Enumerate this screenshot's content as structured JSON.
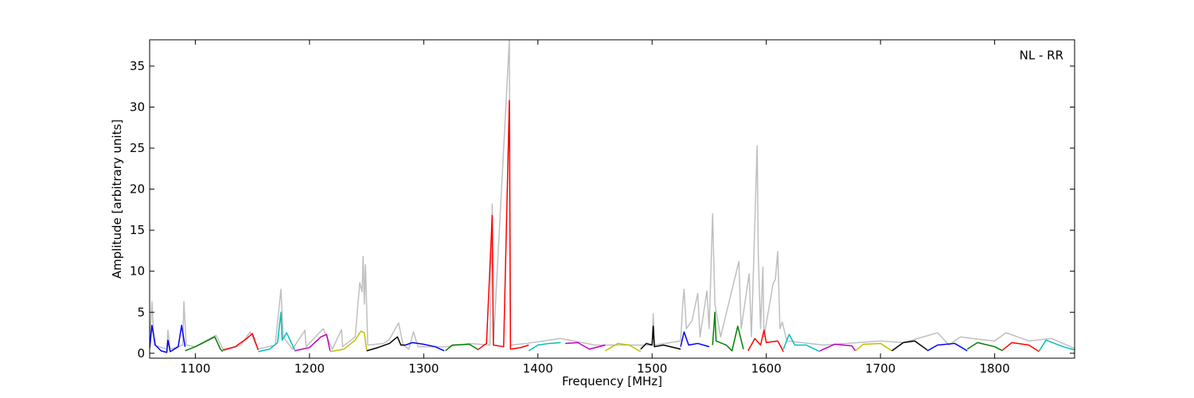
{
  "chart_data": {
    "type": "line",
    "annotation": "NL - RR",
    "xlabel": "Frequency [MHz]",
    "ylabel": "Amplitude [arbitrary units]",
    "xlim": [
      1060,
      1870
    ],
    "xticks": [
      1100,
      1200,
      1300,
      1400,
      1500,
      1600,
      1700,
      1800
    ],
    "ylim": [
      -0.6,
      38.2
    ],
    "yticks": [
      0,
      5,
      10,
      15,
      20,
      25,
      30,
      35
    ],
    "series": [
      {
        "color": "#bfbfbf",
        "x": [
          1060,
          1062,
          1064,
          1075,
          1076,
          1078,
          1089,
          1090,
          1092,
          1100,
          1118,
          1125,
          1140,
          1148,
          1155,
          1170,
          1175,
          1177,
          1185,
          1196,
          1197,
          1212,
          1220,
          1228,
          1229,
          1240,
          1244,
          1246,
          1247,
          1248,
          1249,
          1251,
          1265,
          1270,
          1278,
          1282,
          1287,
          1291,
          1295,
          1320,
          1340,
          1358,
          1360,
          1361,
          1375,
          1376,
          1390,
          1420,
          1450,
          1500,
          1501,
          1502,
          1525,
          1527,
          1528,
          1530,
          1535,
          1540,
          1542,
          1548,
          1550,
          1553,
          1555,
          1560,
          1576,
          1578,
          1585,
          1587,
          1592,
          1593,
          1595,
          1597,
          1598,
          1606,
          1608,
          1610,
          1612,
          1614,
          1618,
          1650,
          1700,
          1720,
          1750,
          1760,
          1770,
          1780,
          1800,
          1810,
          1830,
          1850,
          1870
        ],
        "values": [
          1,
          6.3,
          1,
          0.5,
          2.8,
          0.5,
          1,
          6.3,
          1,
          0.8,
          2.2,
          0.3,
          1,
          2.6,
          0.5,
          1,
          7.8,
          2,
          0.5,
          2.8,
          0.8,
          3,
          0.5,
          2.9,
          0.8,
          2,
          8.6,
          7.5,
          11.8,
          6,
          10.8,
          1,
          1.2,
          1.7,
          3.7,
          1,
          0.5,
          2.6,
          0.8,
          0.8,
          1.2,
          1,
          18.2,
          1,
          38.2,
          1,
          1.2,
          1.8,
          1,
          1,
          4.8,
          1,
          1.5,
          6.3,
          7.8,
          3,
          4,
          7.3,
          2,
          7.6,
          3,
          17,
          6,
          2,
          11.2,
          3,
          9.7,
          2,
          25.3,
          12,
          3,
          10.5,
          2,
          8.5,
          9,
          12.4,
          3,
          3.8,
          1.5,
          1,
          1.5,
          1.3,
          2.5,
          1,
          2,
          1.8,
          1.5,
          2.5,
          1.5,
          1.8,
          0.6
        ]
      },
      {
        "color": "#0000ff",
        "x": [
          1060,
          1062,
          1065,
          1070,
          1075,
          1076,
          1078,
          1085,
          1088,
          1091
        ],
        "values": [
          0.6,
          3.4,
          1,
          0.3,
          0.1,
          1.6,
          0.2,
          0.8,
          3.4,
          0.8
        ]
      },
      {
        "color": "#008000",
        "x": [
          1091,
          1100,
          1110,
          1117,
          1122,
          1124
        ],
        "values": [
          0.3,
          0.8,
          1.5,
          2,
          0.5,
          0.2
        ]
      },
      {
        "color": "#ff0000",
        "x": [
          1124,
          1135,
          1145,
          1150,
          1155
        ],
        "values": [
          0.4,
          0.8,
          1.8,
          2.4,
          0.4
        ]
      },
      {
        "color": "#00bfbf",
        "x": [
          1155,
          1165,
          1172,
          1175,
          1176,
          1180,
          1187
        ],
        "values": [
          0.2,
          0.5,
          1.3,
          5,
          1.6,
          2.5,
          0.4
        ]
      },
      {
        "color": "#bf00bf",
        "x": [
          1187,
          1200,
          1210,
          1215,
          1218
        ],
        "values": [
          0.3,
          0.7,
          2,
          2.3,
          0.3
        ]
      },
      {
        "color": "#bfbf00",
        "x": [
          1218,
          1230,
          1240,
          1245,
          1248,
          1250
        ],
        "values": [
          0.2,
          0.5,
          1.6,
          2.7,
          2.5,
          0.4
        ]
      },
      {
        "color": "#000000",
        "x": [
          1250,
          1260,
          1270,
          1277,
          1280,
          1284
        ],
        "values": [
          0.3,
          0.7,
          1.2,
          2,
          1,
          1
        ]
      },
      {
        "color": "#0000ff",
        "x": [
          1284,
          1290,
          1300,
          1310,
          1318
        ],
        "values": [
          1,
          1.3,
          1.1,
          0.8,
          0.3
        ]
      },
      {
        "color": "#008000",
        "x": [
          1319,
          1325,
          1340,
          1347
        ],
        "values": [
          0.3,
          1,
          1.1,
          0.5
        ]
      },
      {
        "color": "#ff0000",
        "x": [
          1347,
          1355,
          1360,
          1361,
          1370,
          1375,
          1376,
          1385,
          1392
        ],
        "values": [
          0.4,
          1.2,
          16.8,
          1,
          0.8,
          30.8,
          0.5,
          0.7,
          1
        ]
      },
      {
        "color": "#00bfbf",
        "x": [
          1392,
          1400,
          1410,
          1420
        ],
        "values": [
          0.3,
          1,
          1.2,
          1.3
        ]
      },
      {
        "color": "#bf00bf",
        "x": [
          1424,
          1435,
          1445,
          1459
        ],
        "values": [
          1.2,
          1.3,
          0.5,
          1
        ]
      },
      {
        "color": "#bfbf00",
        "x": [
          1459,
          1470,
          1480,
          1490
        ],
        "values": [
          0.3,
          1.2,
          1,
          0.2
        ]
      },
      {
        "color": "#000000",
        "x": [
          1490,
          1495,
          1500,
          1501,
          1502,
          1510,
          1525
        ],
        "values": [
          0.5,
          1.2,
          1,
          3.3,
          0.8,
          1,
          0.5
        ]
      },
      {
        "color": "#0000ff",
        "x": [
          1525,
          1528,
          1532,
          1540,
          1550
        ],
        "values": [
          0.8,
          2.6,
          1,
          1.2,
          0.8
        ]
      },
      {
        "color": "#008000",
        "x": [
          1553,
          1555,
          1556,
          1565,
          1570,
          1575,
          1580
        ],
        "values": [
          1,
          5,
          1.5,
          1,
          0.3,
          3.3,
          0.5
        ]
      },
      {
        "color": "#ff0000",
        "x": [
          1584,
          1590,
          1595,
          1598,
          1600,
          1610,
          1615
        ],
        "values": [
          0.3,
          1.8,
          1,
          2.8,
          1.3,
          1.5,
          0.2
        ]
      },
      {
        "color": "#00bfbf",
        "x": [
          1615,
          1620,
          1625,
          1635,
          1647
        ],
        "values": [
          0.5,
          2.3,
          1,
          1,
          0.2
        ]
      },
      {
        "color": "#bf00bf",
        "x": [
          1647,
          1660,
          1675,
          1678
        ],
        "values": [
          0.3,
          1.1,
          0.9,
          0.3
        ]
      },
      {
        "color": "#bfbf00",
        "x": [
          1678,
          1685,
          1700,
          1710
        ],
        "values": [
          0.3,
          1.1,
          1.2,
          0.3
        ]
      },
      {
        "color": "#000000",
        "x": [
          1710,
          1720,
          1730,
          1741
        ],
        "values": [
          0.3,
          1.3,
          1.5,
          0.4
        ]
      },
      {
        "color": "#0000ff",
        "x": [
          1741,
          1750,
          1765,
          1776
        ],
        "values": [
          0.3,
          1,
          1.2,
          0.3
        ]
      },
      {
        "color": "#008000",
        "x": [
          1776,
          1785,
          1800,
          1807
        ],
        "values": [
          0.5,
          1.3,
          0.8,
          0.3
        ]
      },
      {
        "color": "#ff0000",
        "x": [
          1807,
          1815,
          1830,
          1839
        ],
        "values": [
          0.4,
          1.3,
          1,
          0.2
        ]
      },
      {
        "color": "#00bfbf",
        "x": [
          1839,
          1845,
          1860,
          1870
        ],
        "values": [
          0.3,
          1.6,
          0.8,
          0.4
        ]
      }
    ]
  }
}
